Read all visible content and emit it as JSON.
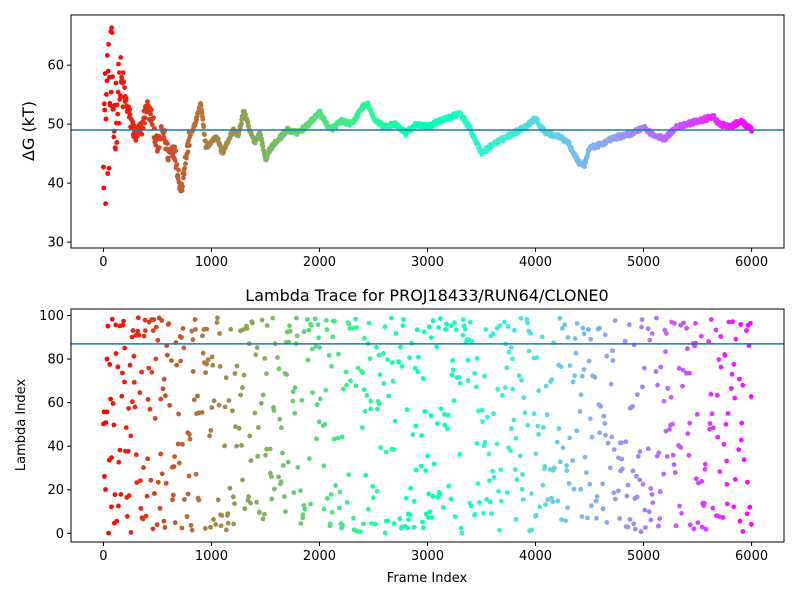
{
  "chart_data": [
    {
      "type": "scatter",
      "title": "",
      "xlabel": "",
      "ylabel": "ΔG (kT)",
      "xlim": [
        -300,
        6300
      ],
      "ylim": [
        29,
        68.5
      ],
      "xticks": [
        0,
        1000,
        2000,
        3000,
        4000,
        5000,
        6000
      ],
      "yticks": [
        30,
        40,
        50,
        60
      ],
      "hline": {
        "y": 49,
        "color": "#1f77b4"
      },
      "colormap": "rainbow",
      "color_by": "frame (late = purple, early = red)",
      "series": [
        {
          "values_x": [
            0,
            15,
            30,
            50,
            75,
            100,
            130,
            160,
            190,
            220,
            260,
            300,
            350,
            400,
            450,
            500,
            550,
            600,
            650,
            700,
            720,
            740,
            800,
            850,
            900,
            950,
            1000,
            1050,
            1100,
            1150,
            1200,
            1250,
            1300,
            1350,
            1400,
            1450,
            1500,
            1550,
            1600,
            1700,
            1800,
            1900,
            2000,
            2100,
            2200,
            2300,
            2400,
            2450,
            2500,
            2600,
            2700,
            2800,
            2900,
            3000,
            3100,
            3200,
            3300,
            3400,
            3500,
            3600,
            3700,
            3800,
            3900,
            4000,
            4050,
            4100,
            4200,
            4300,
            4400,
            4450,
            4500,
            4600,
            4700,
            4800,
            4900,
            5000,
            5100,
            5200,
            5300,
            5400,
            5500,
            5600,
            5650,
            5700,
            5800,
            5900,
            6000
          ],
          "values_y": [
            60,
            45,
            55,
            52,
            58,
            50,
            54,
            57,
            55,
            53,
            50,
            48,
            49,
            53,
            51,
            46,
            49,
            45,
            46,
            41,
            38.5,
            42,
            48,
            50,
            53.5,
            46,
            47,
            48,
            45,
            47,
            49,
            48,
            52.5,
            49,
            47,
            48.5,
            44,
            46,
            47,
            49,
            48.5,
            50,
            52,
            49,
            50.5,
            50,
            53,
            53.3,
            51,
            49.5,
            50,
            48.5,
            50,
            49.5,
            50.5,
            51,
            52,
            49,
            45,
            46.5,
            47.5,
            48.5,
            49.5,
            51,
            49.5,
            48.5,
            48,
            47,
            43.5,
            43,
            46,
            46.5,
            47.5,
            48,
            48.5,
            49.5,
            48,
            47.5,
            49.5,
            50,
            50.5,
            51,
            51.2,
            50,
            49.5,
            50.5,
            49
          ]
        }
      ]
    },
    {
      "type": "scatter",
      "title": "Lambda Trace for PROJ18433/RUN64/CLONE0",
      "xlabel": "Frame Index",
      "ylabel": "Lambda Index",
      "xlim": [
        -300,
        6300
      ],
      "ylim": [
        -4,
        103
      ],
      "xticks": [
        0,
        1000,
        2000,
        3000,
        4000,
        5000,
        6000
      ],
      "yticks": [
        0,
        20,
        40,
        60,
        80,
        100
      ],
      "hline": {
        "y": 87,
        "color": "#1f77b4"
      },
      "colormap": "rainbow",
      "color_by": "frame (late = purple, early = red)",
      "lambda_range": [
        0,
        99
      ],
      "series": [
        {
          "values_x": [
            0,
            6000
          ],
          "values_y": [
            0,
            99
          ]
        }
      ]
    }
  ]
}
